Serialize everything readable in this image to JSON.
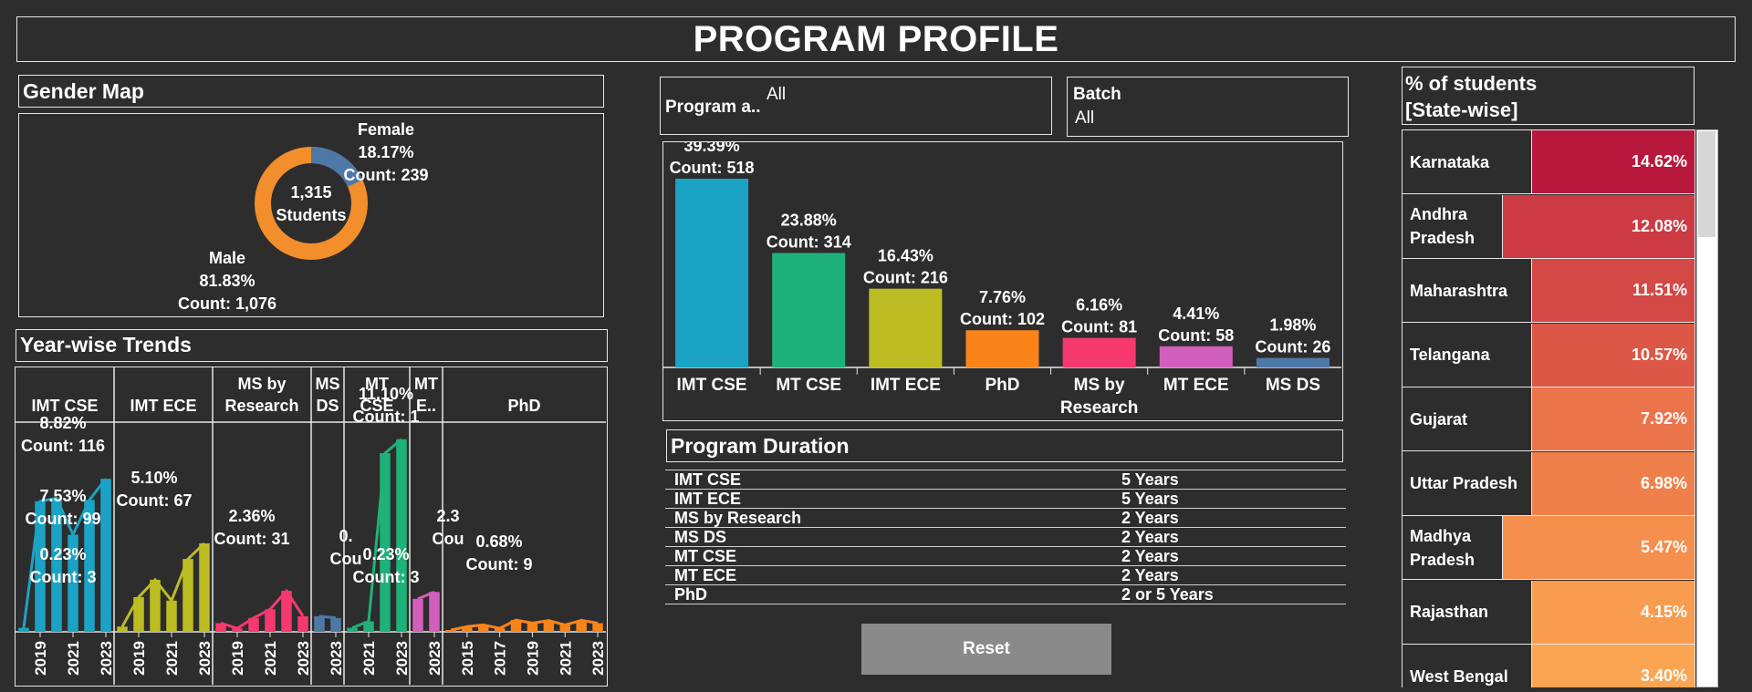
{
  "title": "PROGRAM PROFILE",
  "gender": {
    "header": "Gender Map",
    "center_value": "1,315",
    "center_label": "Students",
    "female": {
      "name": "Female",
      "pct": "18.17%",
      "count": "Count: 239",
      "value": 18.17,
      "color": "#4e79a7"
    },
    "male": {
      "name": "Male",
      "pct": "81.83%",
      "count": "Count: 1,076",
      "value": 81.83,
      "color": "#f28e2b"
    }
  },
  "trends": {
    "header": "Year-wise Trends",
    "panels": [
      {
        "name": "IMT CSE",
        "color": "#1ba3c6",
        "years": [
          2018,
          2019,
          2020,
          2021,
          2022,
          2023
        ],
        "ticks": [
          2019,
          2021,
          2023
        ],
        "values": [
          0.23,
          7.53,
          7.7,
          5.6,
          7.6,
          8.82
        ],
        "labels": [
          {
            "pct": "8.82%",
            "count": "Count: 116"
          },
          {
            "pct": "7.53%",
            "count": "Count: 99"
          },
          {
            "pct": "0.23%",
            "count": "Count: 3"
          }
        ]
      },
      {
        "name": "IMT ECE",
        "color": "#bcbd22",
        "years": [
          2018,
          2019,
          2020,
          2021,
          2022,
          2023
        ],
        "ticks": [
          2019,
          2021,
          2023
        ],
        "values": [
          0.3,
          2.0,
          3.0,
          1.8,
          4.2,
          5.1
        ],
        "labels": [
          {
            "pct": "5.10%",
            "count": "Count: 67"
          }
        ]
      },
      {
        "name": "MS by Research",
        "color": "#f5396e",
        "years": [
          2018,
          2019,
          2020,
          2021,
          2022,
          2023
        ],
        "ticks": [
          2019,
          2021,
          2023
        ],
        "values": [
          0.5,
          0.2,
          0.8,
          1.3,
          2.36,
          0.9
        ],
        "labels": [
          {
            "pct": "2.36%",
            "count": "Count: 31"
          }
        ]
      },
      {
        "name": "MS DS",
        "color": "#4e79a7",
        "years": [
          2022,
          2023
        ],
        "ticks": [
          2023
        ],
        "values": [
          0.9,
          0.8
        ],
        "labels": [
          {
            "pct": "0.",
            "count": "Cou"
          }
        ]
      },
      {
        "name": "MT CSE",
        "color": "#1fb17a",
        "years": [
          2020,
          2021,
          2022,
          2023
        ],
        "ticks": [
          2021,
          2023
        ],
        "values": [
          0.23,
          0.6,
          10.3,
          11.1
        ],
        "labels": [
          {
            "pct": "11.10%",
            "count": "Count: 1"
          },
          {
            "pct": "0.23%",
            "count": "Count: 3"
          }
        ]
      },
      {
        "name": "MT E..",
        "color": "#d35fbc",
        "years": [
          2022,
          2023
        ],
        "ticks": [
          2023
        ],
        "values": [
          1.9,
          2.3
        ],
        "labels": [
          {
            "pct": "2.3",
            "count": "Cou"
          }
        ]
      },
      {
        "name": "PhD",
        "color": "#fa841a",
        "years": [
          2014,
          2015,
          2016,
          2017,
          2018,
          2019,
          2020,
          2021,
          2022,
          2023
        ],
        "ticks": [
          2015,
          2017,
          2019,
          2021,
          2023
        ],
        "values": [
          0.1,
          0.3,
          0.4,
          0.2,
          0.68,
          0.5,
          0.65,
          0.4,
          0.66,
          0.5
        ],
        "labels": [
          {
            "pct": "0.68%",
            "count": "Count: 9"
          }
        ]
      }
    ]
  },
  "filters": {
    "program": {
      "label": "Program a..",
      "value": "All"
    },
    "batch": {
      "label": "Batch",
      "value": "All"
    }
  },
  "chart_data": {
    "type": "bar",
    "categories": [
      "IMT CSE",
      "MT CSE",
      "IMT ECE",
      "PhD",
      "MS by Research",
      "MT ECE",
      "MS DS"
    ],
    "values": [
      39.39,
      23.88,
      16.43,
      7.76,
      6.16,
      4.41,
      1.98
    ],
    "counts": [
      "Count: 518",
      "Count: 314",
      "Count: 216",
      "Count: 102",
      "Count: 81",
      "Count: 58",
      "Count: 26"
    ],
    "labels": [
      "39.39%",
      "23.88%",
      "16.43%",
      "7.76%",
      "6.16%",
      "4.41%",
      "1.98%"
    ],
    "colors": [
      "#1ba3c6",
      "#1fb17a",
      "#bcbd22",
      "#fa841a",
      "#f5396e",
      "#d35fbc",
      "#4e79a7"
    ],
    "ylim": [
      0,
      42
    ]
  },
  "duration": {
    "header": "Program Duration",
    "rows": [
      {
        "program": "IMT CSE",
        "years": "5 Years"
      },
      {
        "program": "IMT ECE",
        "years": "5 Years"
      },
      {
        "program": "MS by Research",
        "years": "2 Years"
      },
      {
        "program": "MS DS",
        "years": "2 Years"
      },
      {
        "program": "MT CSE",
        "years": "2 Years"
      },
      {
        "program": "MT ECE",
        "years": "2 Years"
      },
      {
        "program": "PhD",
        "years": "2 or 5 Years"
      }
    ]
  },
  "reset_label": "Reset",
  "states": {
    "header_line1": "% of students",
    "header_line2": "[State-wise]",
    "rows": [
      {
        "name": "Karnataka",
        "pct": "14.62%",
        "color": "#b8183c"
      },
      {
        "name": "Andhra Pradesh",
        "pct": "12.08%",
        "color": "#cc3a44"
      },
      {
        "name": "Maharashtra",
        "pct": "11.51%",
        "color": "#d44845"
      },
      {
        "name": "Telangana",
        "pct": "10.57%",
        "color": "#dc5745"
      },
      {
        "name": "Gujarat",
        "pct": "7.92%",
        "color": "#ec744a"
      },
      {
        "name": "Uttar Pradesh",
        "pct": "6.98%",
        "color": "#f0804b"
      },
      {
        "name": "Madhya Pradesh",
        "pct": "5.47%",
        "color": "#f48f4d"
      },
      {
        "name": "Rajasthan",
        "pct": "4.15%",
        "color": "#f89c50"
      },
      {
        "name": "West Bengal",
        "pct": "3.40%",
        "color": "#fba553"
      }
    ]
  }
}
